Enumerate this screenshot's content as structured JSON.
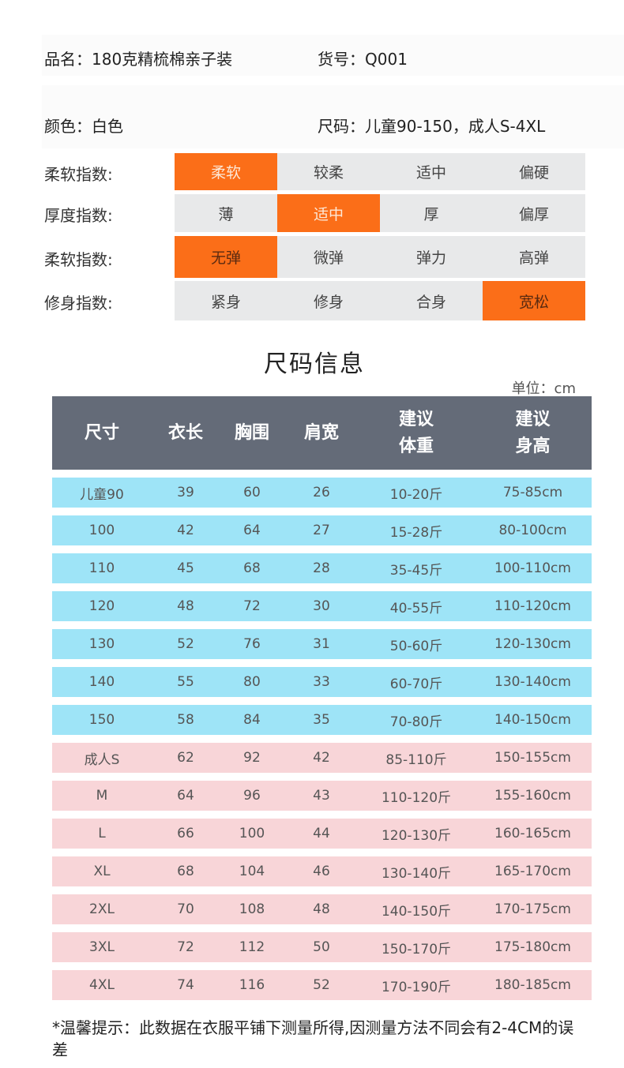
{
  "product": {
    "name_label": "品名：180克精梳棉亲子装",
    "sku_label": "货号：Q001",
    "color_label": "颜色：白色",
    "size_label": "尺码：儿童90-150，成人S-4XL"
  },
  "indices": [
    {
      "label": "柔软指数:",
      "options": [
        "柔软",
        "较柔",
        "适中",
        "偏硬"
      ],
      "selected": 0,
      "text_tone": "light"
    },
    {
      "label": "厚度指数:",
      "options": [
        "薄",
        "适中",
        "厚",
        "偏厚"
      ],
      "selected": 1,
      "text_tone": "light"
    },
    {
      "label": "柔软指数:",
      "options": [
        "无弹",
        "微弹",
        "弹力",
        "高弹"
      ],
      "selected": 0,
      "text_tone": "dark"
    },
    {
      "label": "修身指数:",
      "options": [
        "紧身",
        "修身",
        "合身",
        "宽松"
      ],
      "selected": 3,
      "text_tone": "dark"
    }
  ],
  "size_table": {
    "title": "尺码信息",
    "unit": "单位：cm",
    "headers": [
      [
        "尺寸"
      ],
      [
        "衣长"
      ],
      [
        "胸围"
      ],
      [
        "肩宽"
      ],
      [
        "建议",
        "体重"
      ],
      [
        "建议",
        "身高"
      ]
    ],
    "rows": [
      {
        "group": "kid",
        "cells": [
          "儿童90",
          "39",
          "60",
          "26",
          "10-20斤",
          "75-85cm"
        ]
      },
      {
        "group": "kid",
        "cells": [
          "100",
          "42",
          "64",
          "27",
          "15-28斤",
          "80-100cm"
        ]
      },
      {
        "group": "kid",
        "cells": [
          "110",
          "45",
          "68",
          "28",
          "35-45斤",
          "100-110cm"
        ]
      },
      {
        "group": "kid",
        "cells": [
          "120",
          "48",
          "72",
          "30",
          "40-55斤",
          "110-120cm"
        ]
      },
      {
        "group": "kid",
        "cells": [
          "130",
          "52",
          "76",
          "31",
          "50-60斤",
          "120-130cm"
        ]
      },
      {
        "group": "kid",
        "cells": [
          "140",
          "55",
          "80",
          "33",
          "60-70斤",
          "130-140cm"
        ]
      },
      {
        "group": "kid",
        "cells": [
          "150",
          "58",
          "84",
          "35",
          "70-80斤",
          "140-150cm"
        ]
      },
      {
        "group": "adult",
        "cells": [
          "成人S",
          "62",
          "92",
          "42",
          "85-110斤",
          "150-155cm"
        ]
      },
      {
        "group": "adult",
        "cells": [
          "M",
          "64",
          "96",
          "43",
          "110-120斤",
          "155-160cm"
        ]
      },
      {
        "group": "adult",
        "cells": [
          "L",
          "66",
          "100",
          "44",
          "120-130斤",
          "160-165cm"
        ]
      },
      {
        "group": "adult",
        "cells": [
          "XL",
          "68",
          "104",
          "46",
          "130-140斤",
          "165-170cm"
        ]
      },
      {
        "group": "adult",
        "cells": [
          "2XL",
          "70",
          "108",
          "48",
          "140-150斤",
          "170-175cm"
        ]
      },
      {
        "group": "adult",
        "cells": [
          "3XL",
          "72",
          "112",
          "50",
          "150-170斤",
          "175-180cm"
        ]
      },
      {
        "group": "adult",
        "cells": [
          "4XL",
          "74",
          "116",
          "52",
          "170-190斤",
          "180-185cm"
        ]
      }
    ]
  },
  "note": "*温馨提示：此数据在衣服平铺下测量所得,因测量方法不同会有2-4CM的误差",
  "colors": {
    "accent_orange": "#fb6e18",
    "index_cell_gray": "#e8e9ea",
    "table_header": "#646b78",
    "kid_row": "#9ee4f7",
    "adult_row": "#f8d5d8"
  }
}
